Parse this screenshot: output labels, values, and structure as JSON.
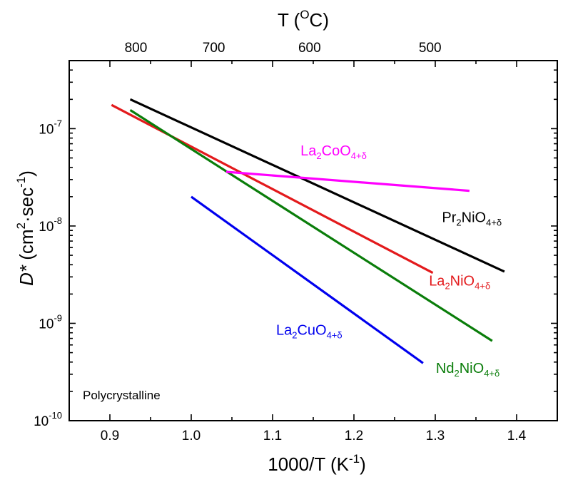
{
  "chart_data": {
    "type": "line",
    "title": "",
    "xlabel": "1000/T (K-1)",
    "ylabel": "D* (cm2·sec-1)",
    "x_axis_title": {
      "main": "1000/T (K",
      "sup": "-1",
      "tail": ")"
    },
    "y_axis_title": {
      "italic": "D*",
      "rest": " (cm",
      "sup1": "2",
      "mid": "·sec",
      "sup2": "-1",
      "tail": ")"
    },
    "top_axis_title": {
      "main": "T (",
      "sup": "O",
      "tail": "C)"
    },
    "xlim": [
      0.85,
      1.45
    ],
    "ylim": [
      1e-10,
      5e-07
    ],
    "yscale": "log",
    "x_ticks": [
      {
        "value": 0.9,
        "label": "0.9"
      },
      {
        "value": 1.0,
        "label": "1.0"
      },
      {
        "value": 1.1,
        "label": "1.1"
      },
      {
        "value": 1.2,
        "label": "1.2"
      },
      {
        "value": 1.3,
        "label": "1.3"
      },
      {
        "value": 1.4,
        "label": "1.4"
      }
    ],
    "y_ticks": [
      {
        "value": 1e-10,
        "base": "10",
        "exp": "-10"
      },
      {
        "value": 1e-09,
        "base": "10",
        "exp": "-9"
      },
      {
        "value": 1e-08,
        "base": "10",
        "exp": "-8"
      },
      {
        "value": 1e-07,
        "base": "10",
        "exp": "-7"
      }
    ],
    "top_ticks": [
      {
        "celsius": 800,
        "label": "800"
      },
      {
        "celsius": 700,
        "label": "700"
      },
      {
        "celsius": 600,
        "label": "600"
      },
      {
        "celsius": 500,
        "label": "500"
      }
    ],
    "grid": false,
    "annotation": "Polycrystalline",
    "series": [
      {
        "name": "Pr2NiO4+δ",
        "label_main": "Pr",
        "label_sub1": "2",
        "label_mid": "NiO",
        "label_sub2": "4+δ",
        "color": "#000000",
        "x": [
          0.925,
          1.385
        ],
        "y": [
          2e-07,
          3.4e-09
        ],
        "label_at": {
          "x": 1.345,
          "y": 1.1e-08
        }
      },
      {
        "name": "La2NiO4+δ",
        "label_main": "La",
        "label_sub1": "2",
        "label_mid": "NiO",
        "label_sub2": "4+δ",
        "color": "#e31a1c",
        "x": [
          0.902,
          1.297
        ],
        "y": [
          1.75e-07,
          3.3e-09
        ],
        "label_at": {
          "x": 1.33,
          "y": 2.45e-09
        }
      },
      {
        "name": "Nd2NiO4+δ",
        "label_main": "Nd",
        "label_sub1": "2",
        "label_mid": "NiO",
        "label_sub2": "4+δ",
        "color": "#0a7d0a",
        "x": [
          0.925,
          1.37
        ],
        "y": [
          1.55e-07,
          6.6e-10
        ],
        "label_at": {
          "x": 1.34,
          "y": 3.1e-10
        }
      },
      {
        "name": "La2CoO4+δ",
        "label_main": "La",
        "label_sub1": "2",
        "label_mid": "CoO",
        "label_sub2": "4+δ",
        "color": "#ff00ff",
        "x": [
          1.043,
          1.342
        ],
        "y": [
          3.6e-08,
          2.3e-08
        ],
        "label_at": {
          "x": 1.175,
          "y": 5.3e-08
        }
      },
      {
        "name": "La2CuO4+δ",
        "label_main": "La",
        "label_sub1": "2",
        "label_mid": "CuO",
        "label_sub2": "4+δ",
        "color": "#0000ee",
        "x": [
          1.0,
          1.285
        ],
        "y": [
          2e-08,
          3.9e-10
        ],
        "label_at": {
          "x": 1.145,
          "y": 7.6e-10
        }
      }
    ]
  }
}
